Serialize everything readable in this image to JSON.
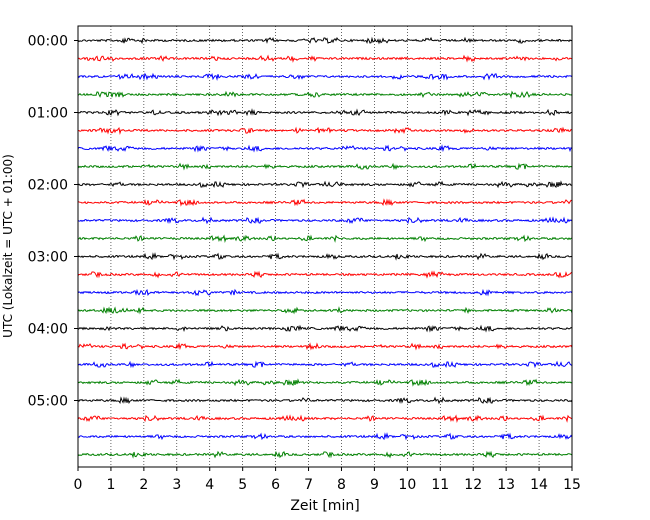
{
  "chart_data": {
    "type": "line",
    "title": "",
    "xlabel": "Zeit  [min]",
    "ylabel": "UTC (Lokalzeit = UTC + 01:00)",
    "xlim": [
      0,
      15
    ],
    "x_ticks": [
      "0",
      "1",
      "2",
      "3",
      "4",
      "5",
      "6",
      "7",
      "8",
      "9",
      "10",
      "11",
      "12",
      "13",
      "14",
      "15"
    ],
    "y_tick_labels": [
      "00:00",
      "01:00",
      "02:00",
      "03:00",
      "04:00",
      "05:00"
    ],
    "trace_count": 24,
    "trace_interval_min": 15,
    "trace_colors": [
      "#000000",
      "#ff0000",
      "#0000ff",
      "#008000"
    ],
    "grid": "vertical dotted at each minute",
    "legend": "none"
  }
}
